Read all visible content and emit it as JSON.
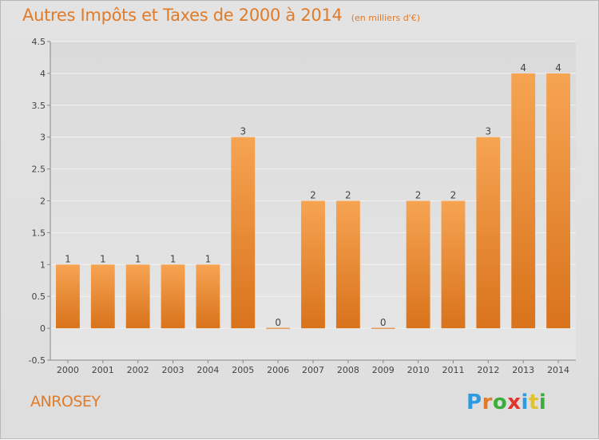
{
  "header": {
    "title": "Autres Impôts et Taxes de 2000 à 2014",
    "unit_note": "(en milliers d'€)"
  },
  "footer": {
    "commune": "ANROSEY",
    "brand": "Proxiti"
  },
  "colors": {
    "title": "#e07b2a",
    "bar_light": "#f6a452",
    "bar_dark": "#d9731c",
    "label": "#444444",
    "brand_letters": [
      "#2e9be0",
      "#e07b2a",
      "#3aae3a",
      "#e0352e",
      "#2e9be0",
      "#e0c22e",
      "#3aae3a"
    ]
  },
  "chart_data": {
    "type": "bar",
    "categories": [
      "2000",
      "2001",
      "2002",
      "2003",
      "2004",
      "2005",
      "2006",
      "2007",
      "2008",
      "2009",
      "2010",
      "2011",
      "2012",
      "2013",
      "2014"
    ],
    "values": [
      1,
      1,
      1,
      1,
      1,
      3,
      0,
      2,
      2,
      0,
      2,
      2,
      3,
      4,
      4
    ],
    "data_labels": [
      "1",
      "1",
      "1",
      "1",
      "1",
      "3",
      "0",
      "2",
      "2",
      "0",
      "2",
      "2",
      "3",
      "4",
      "4"
    ],
    "ylim": [
      -0.5,
      4.5
    ],
    "yticks": [
      "-0.5",
      "0",
      "0.5",
      "1",
      "1.5",
      "2",
      "2.5",
      "3",
      "3.5",
      "4",
      "4.5"
    ],
    "ytick_values": [
      -0.5,
      0,
      0.5,
      1,
      1.5,
      2,
      2.5,
      3,
      3.5,
      4,
      4.5
    ],
    "grid": true,
    "legend": "none"
  }
}
